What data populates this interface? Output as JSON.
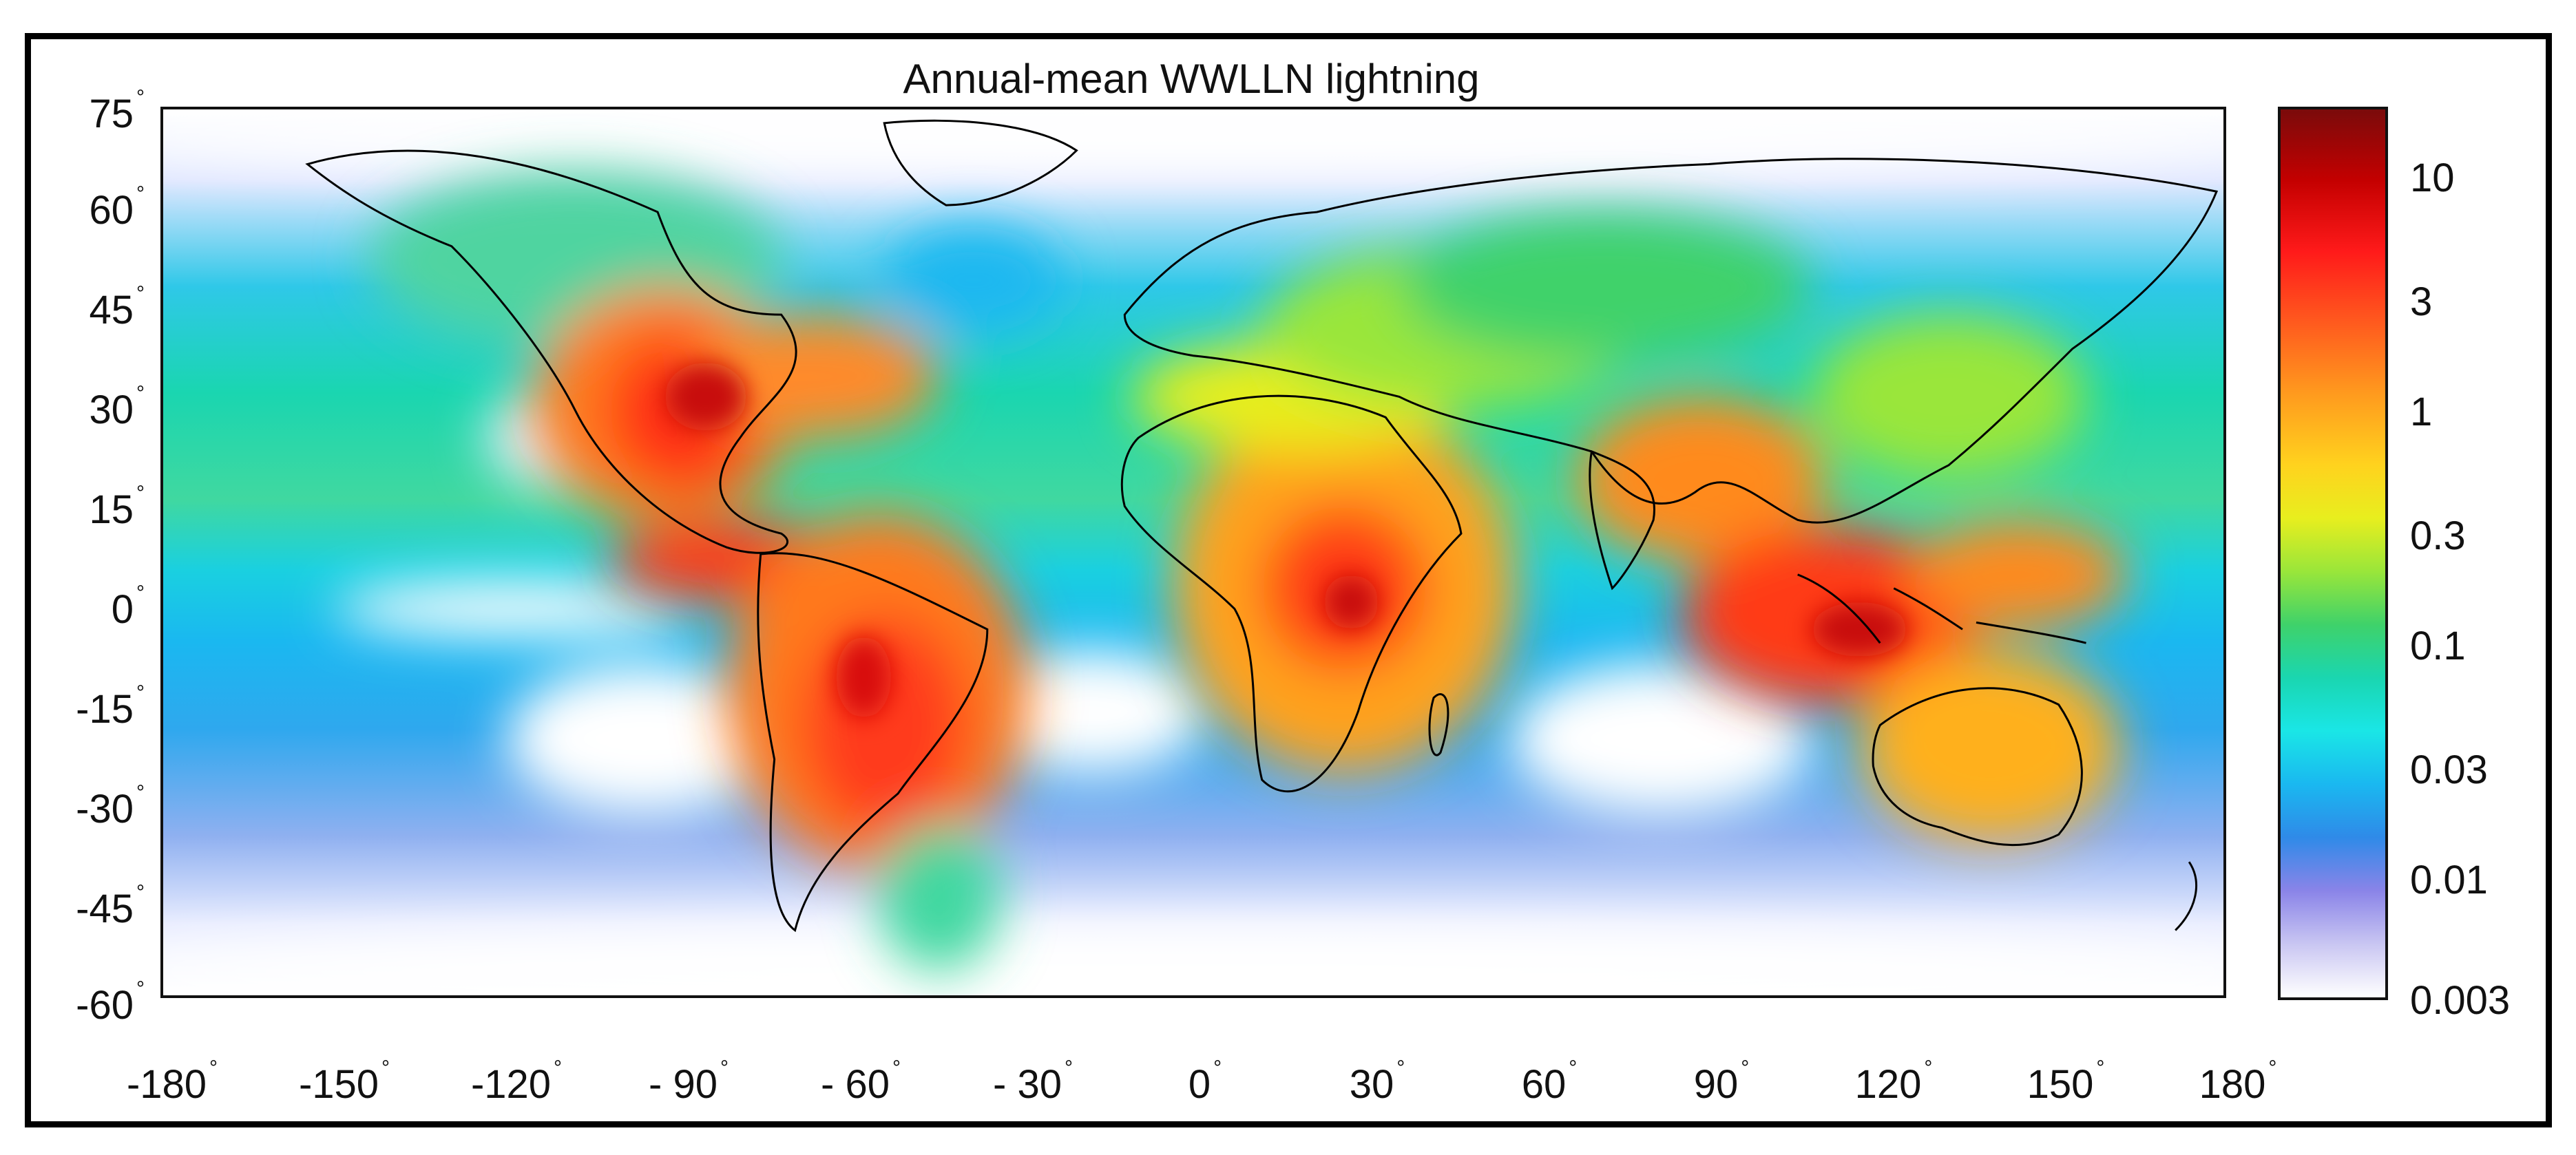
{
  "title": "Annual-mean WWLLN lightning",
  "y_axis": {
    "deg_symbol": "°",
    "ticks": [
      "75",
      "60",
      "45",
      "30",
      "15",
      "0",
      "-15",
      "-30",
      "-45",
      "-60"
    ]
  },
  "x_axis": {
    "deg_symbol": "°",
    "ticks": [
      "-180",
      "-150",
      "-120",
      "- 90",
      "- 60",
      "- 30",
      "0",
      "30",
      "60",
      "90",
      "120",
      "150",
      "180"
    ]
  },
  "colorbar": {
    "ticks": [
      "10",
      "3",
      "1",
      "0.3",
      "0.1",
      "0.03",
      "0.01",
      "0.003"
    ],
    "scale": "log",
    "colors": [
      "#7a0b0b",
      "#ff1a1a",
      "#ff9a1e",
      "#e8ee1e",
      "#3fd26a",
      "#1ae6e6",
      "#2f8ae8",
      "#c9c6f2",
      "#ffffff"
    ]
  },
  "map": {
    "lon_range": [
      -180,
      180
    ],
    "lat_range": [
      -60,
      75
    ],
    "coastlines": "black",
    "background": "#ffffff"
  }
}
